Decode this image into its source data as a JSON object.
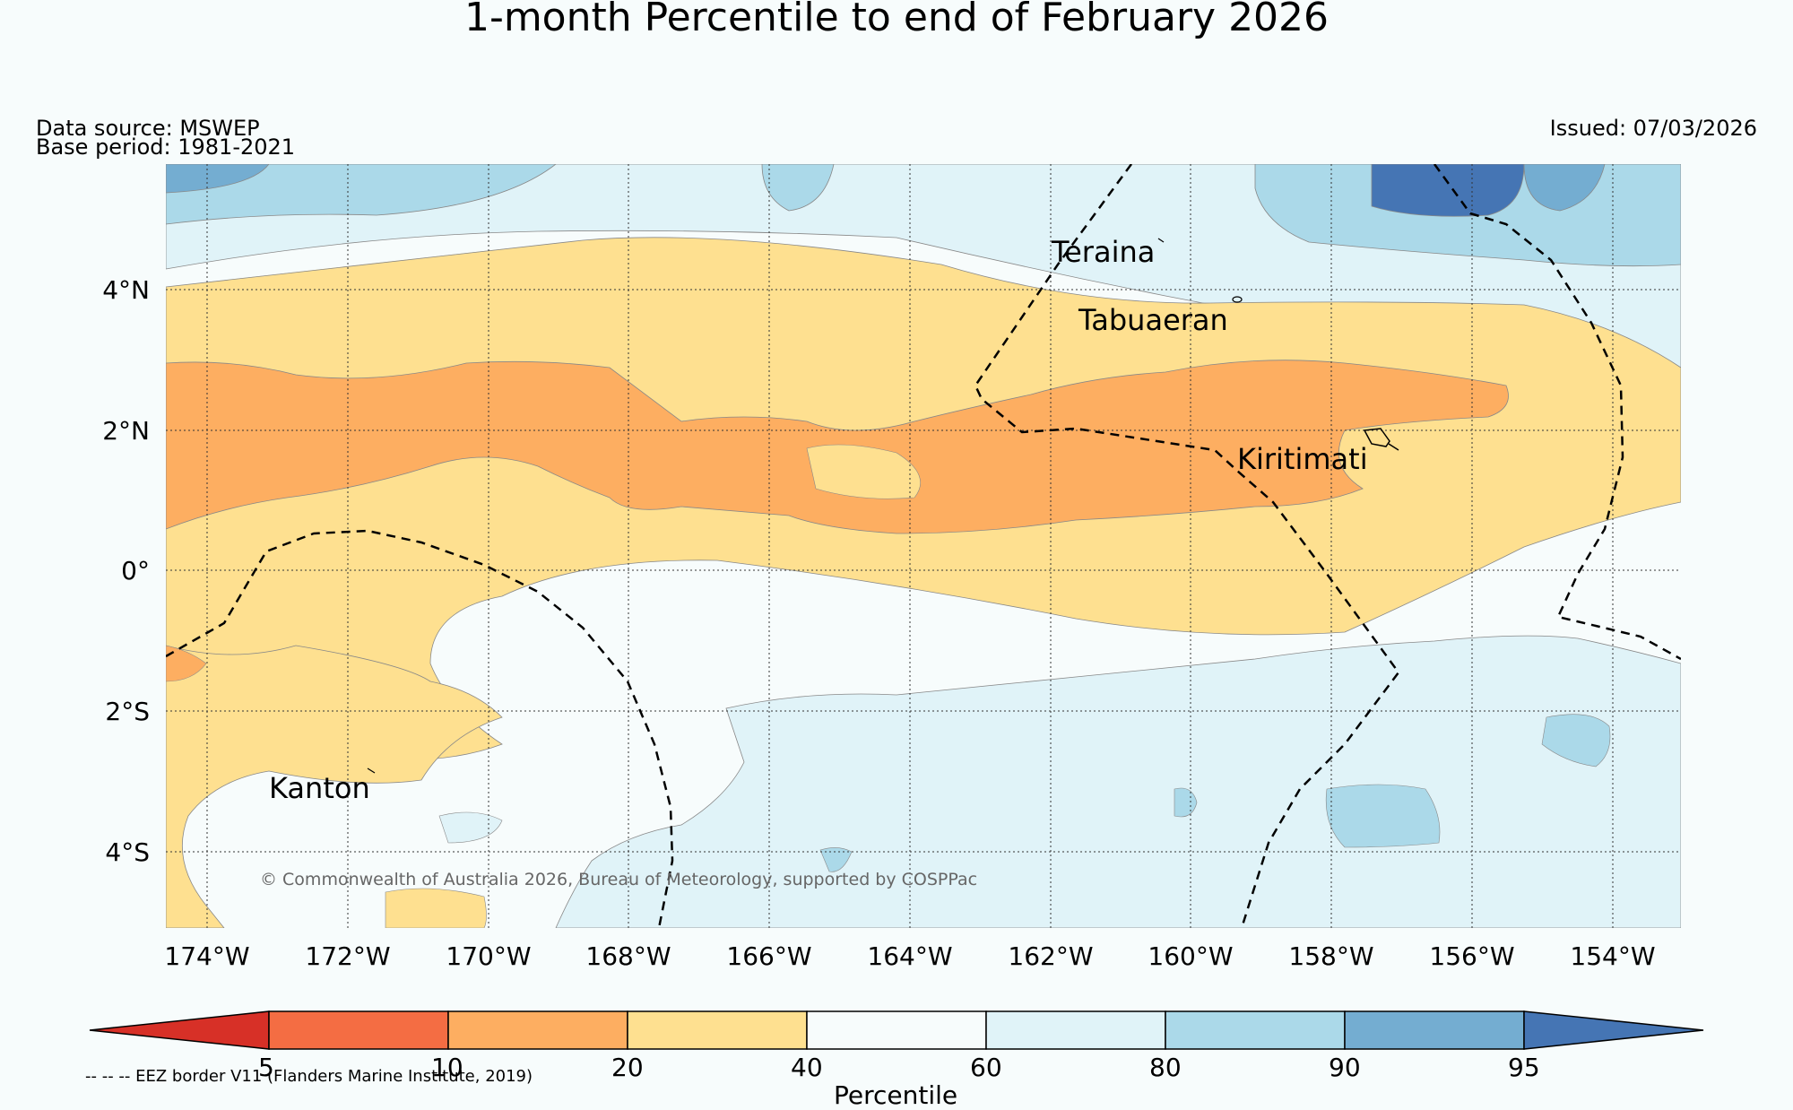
{
  "title": "1-month Percentile to end of February 2026",
  "data_source": "Data source: MSWEP",
  "base_period": "Base period: 1981-2021",
  "issued": "Issued: 07/03/2026",
  "copyright": "© Commonwealth of Australia 2026, Bureau of Meteorology, supported by COSPPac",
  "lon_ticks": [
    "174°W",
    "172°W",
    "170°W",
    "168°W",
    "166°W",
    "164°W",
    "162°W",
    "160°W",
    "158°W",
    "156°W",
    "154°W"
  ],
  "lat_ticks": [
    "4°N",
    "2°N",
    "0°",
    "2°S",
    "4°S"
  ],
  "places": [
    {
      "name": "Teraina"
    },
    {
      "name": "Tabuaeran"
    },
    {
      "name": "Kiritimati"
    },
    {
      "name": "Kanton"
    }
  ],
  "colorbar": {
    "title": "Percentile",
    "ticks": [
      "5",
      "10",
      "20",
      "40",
      "60",
      "80",
      "90",
      "95"
    ],
    "colors": {
      "below_5": "#d73027",
      "5_10": "#f46d43",
      "10_20": "#fdae61",
      "20_40": "#fee090",
      "40_60": "#f7fcfc",
      "60_80": "#e0f3f8",
      "80_90": "#abd9e9",
      "90_95": "#74add1",
      "above_95": "#4575b4"
    }
  },
  "eez_note": "-- -- -- EEZ border V11 (Flanders Marine Institute, 2019)"
}
